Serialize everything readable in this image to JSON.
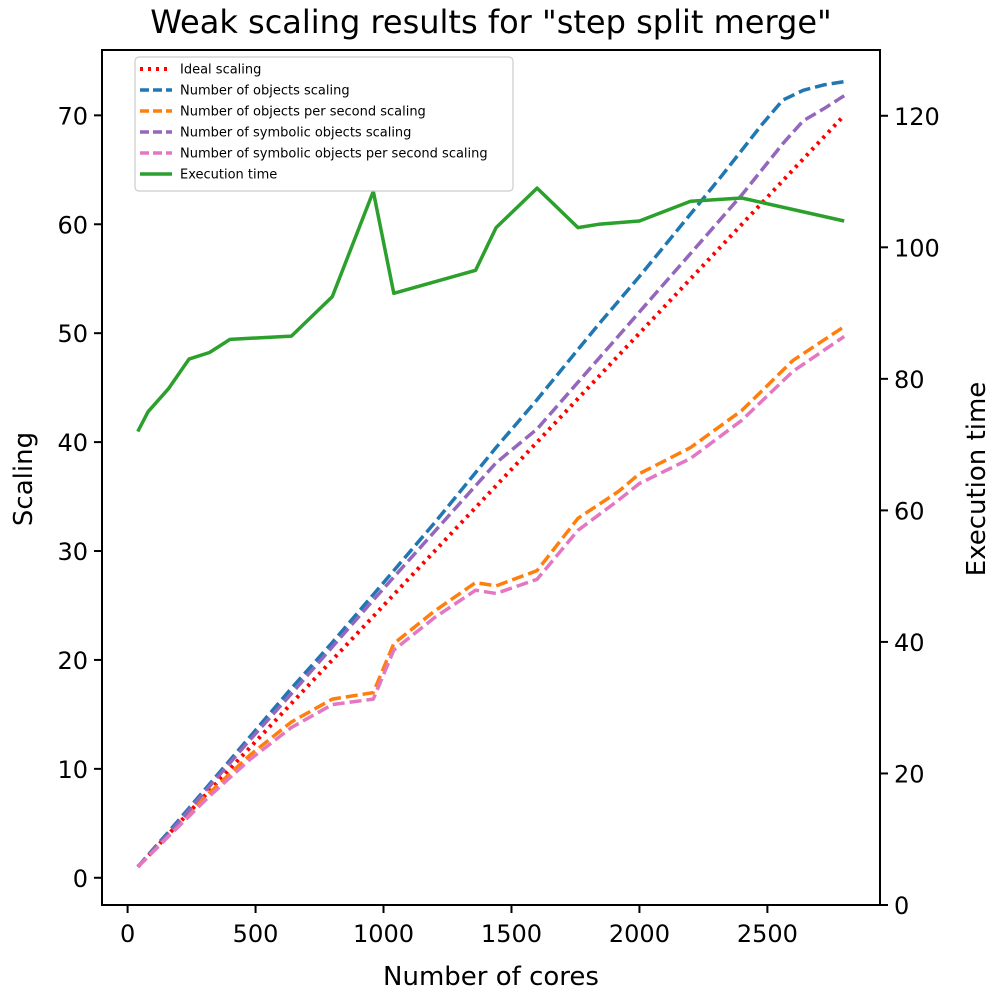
{
  "chart_data": {
    "type": "line",
    "title": "Weak scaling results for \"step split merge\"",
    "xlabel": "Number of cores",
    "ylabel_left": "Scaling",
    "ylabel_right": "Execution time",
    "xlim": [
      -100,
      2940
    ],
    "ylim_left": [
      -2.5,
      76
    ],
    "ylim_right": [
      0,
      130
    ],
    "xticks": [
      0,
      500,
      1000,
      1500,
      2000,
      2500
    ],
    "yticks_left": [
      0,
      10,
      20,
      30,
      40,
      50,
      60,
      70
    ],
    "yticks_right": [
      0,
      20,
      40,
      60,
      80,
      100,
      120
    ],
    "grid": false,
    "legend_position": "top-left",
    "series": [
      {
        "name": "Ideal scaling",
        "axis": "left",
        "color": "#ff0000",
        "style": "dotted",
        "x": [
          40,
          2800
        ],
        "values": [
          1,
          70
        ]
      },
      {
        "name": "Number of objects scaling",
        "axis": "left",
        "color": "#1f77b4",
        "style": "dashed",
        "x": [
          40,
          80,
          160,
          240,
          320,
          400,
          480,
          560,
          640,
          720,
          800,
          880,
          960,
          1040,
          1120,
          1200,
          1280,
          1360,
          1440,
          1520,
          1600,
          1680,
          1760,
          1840,
          1920,
          2000,
          2080,
          2160,
          2240,
          2320,
          2400,
          2480,
          2560,
          2640,
          2720,
          2800
        ],
        "values": [
          1,
          2.1,
          4.2,
          6.4,
          8.6,
          10.8,
          13.0,
          15.2,
          17.4,
          19.5,
          21.6,
          23.8,
          26.0,
          28.2,
          30.4,
          32.6,
          34.9,
          37.2,
          39.5,
          41.7,
          43.9,
          46.2,
          48.5,
          50.8,
          53.0,
          55.2,
          57.5,
          59.8,
          62.1,
          64.4,
          66.8,
          69.2,
          71.4,
          72.3,
          72.8,
          73.1
        ]
      },
      {
        "name": "Number of objects per second scaling",
        "axis": "left",
        "color": "#ff7f0e",
        "style": "dashed",
        "x": [
          40,
          160,
          320,
          480,
          640,
          800,
          960,
          1040,
          1200,
          1360,
          1440,
          1600,
          1760,
          1920,
          2000,
          2200,
          2400,
          2600,
          2800
        ],
        "values": [
          1,
          4.0,
          7.8,
          11.3,
          14.3,
          16.4,
          17.0,
          21.5,
          24.5,
          27.1,
          26.8,
          28.2,
          33.0,
          35.5,
          37.1,
          39.5,
          42.9,
          47.5,
          50.6
        ]
      },
      {
        "name": "Number of symbolic objects scaling",
        "axis": "left",
        "color": "#9467bd",
        "style": "dashed",
        "x": [
          40,
          160,
          320,
          480,
          640,
          800,
          960,
          1120,
          1280,
          1440,
          1600,
          1760,
          1920,
          2080,
          2240,
          2400,
          2560,
          2640,
          2720,
          2800
        ],
        "values": [
          1,
          4.0,
          8.4,
          12.7,
          16.9,
          21.2,
          25.5,
          29.7,
          33.9,
          38.1,
          41.2,
          45.5,
          49.8,
          54.1,
          58.4,
          62.7,
          67.4,
          69.5,
          70.6,
          71.8
        ]
      },
      {
        "name": "Number of symbolic objects per second scaling",
        "axis": "left",
        "color": "#e377c2",
        "style": "dashed",
        "x": [
          40,
          160,
          320,
          480,
          640,
          800,
          960,
          1040,
          1200,
          1360,
          1440,
          1600,
          1760,
          1920,
          2000,
          2200,
          2400,
          2600,
          2800
        ],
        "values": [
          1,
          3.8,
          7.5,
          10.9,
          13.8,
          15.9,
          16.4,
          20.9,
          23.9,
          26.4,
          26.1,
          27.4,
          31.9,
          34.7,
          36.2,
          38.5,
          42.0,
          46.5,
          49.7
        ]
      },
      {
        "name": "Execution time",
        "axis": "right",
        "color": "#2ca02c",
        "style": "solid",
        "x": [
          40,
          80,
          160,
          240,
          320,
          400,
          640,
          800,
          960,
          1040,
          1360,
          1440,
          1600,
          1760,
          1840,
          2000,
          2200,
          2400,
          2800
        ],
        "values": [
          72,
          75,
          78.5,
          83,
          84,
          86,
          86.5,
          92.5,
          108.5,
          93,
          96.5,
          103,
          109,
          103,
          103.5,
          104,
          107,
          107.5,
          104
        ]
      }
    ]
  }
}
